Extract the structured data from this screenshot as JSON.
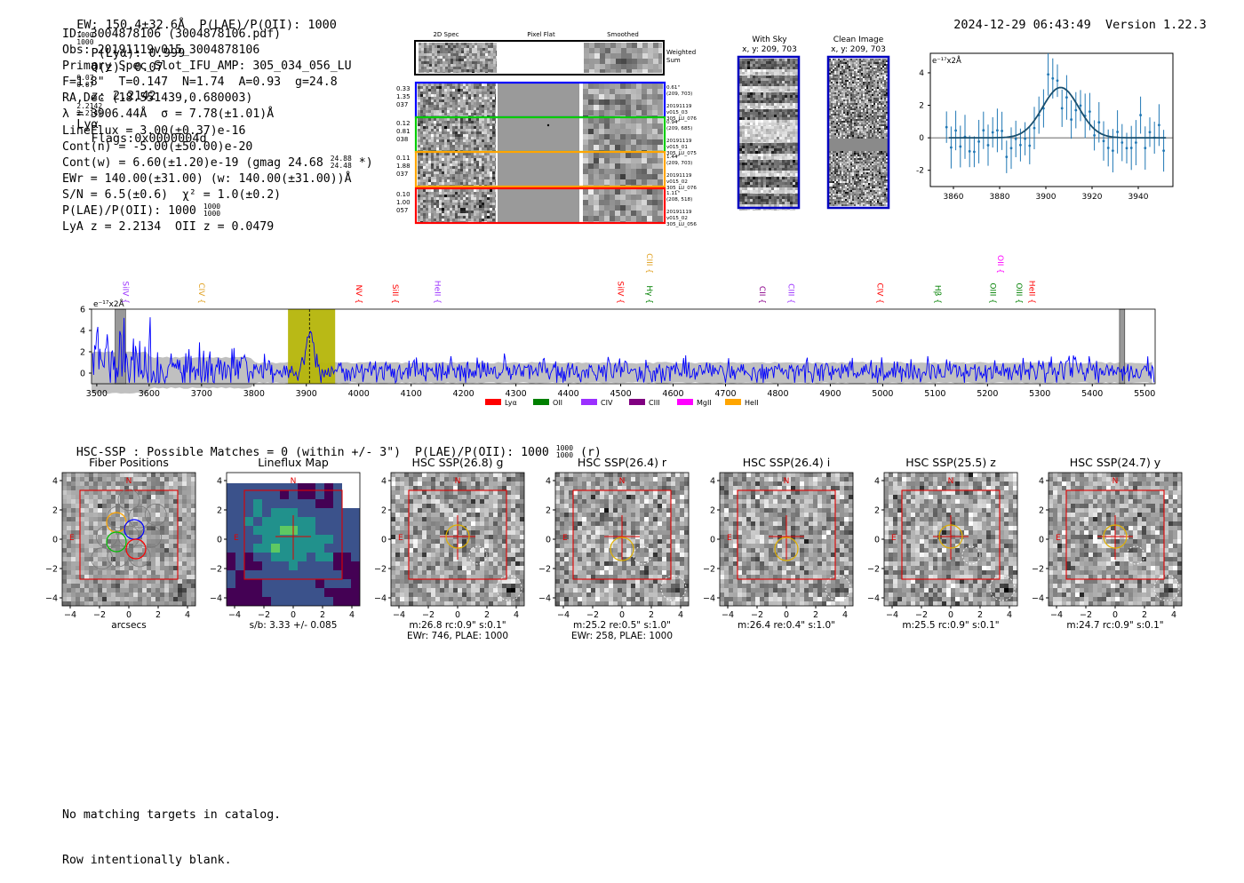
{
  "header": {
    "left": "EW: 150.4±32.6Å  P(LAE)/P(OII): 1000",
    "plae_num": "1000",
    "plae_den": "1000",
    "plya": "P(Lyα): 0.999",
    "qz": "Q(z): 0.07",
    "qz_num": "0.07",
    "qz_den": "0.07",
    "z": "z: 2.2142",
    "z_num": "2.2142",
    "z_den": "2.2142",
    "lya": "Lyα",
    "flags": "Flags:0x0000004d",
    "timestamp": "2024-12-29 06:43:49",
    "version": "Version 1.22.3"
  },
  "info": {
    "l1": "ID: 3004878106 (3004878106.pdf)",
    "l2": "Obs: 20191119v015_3004878106",
    "l3": "Primary Spec_Slot_IFU_AMP: 305_034_056_LU",
    "l4": "F=1.8\"  T=0.147  N=1.74  A=0.93  g=24.8",
    "l5": "RA,Dec (18.551439,0.680003)",
    "l6": "λ = 3906.44Å  σ = 7.78(±1.01)Å",
    "l7": "LineFlux = 3.00(±0.37)e-16",
    "l8": "Cont(n) = -5.00(±50.00)e-20",
    "l9a": "Cont(w) = 6.60(±1.20)e-19 (gmag 24.68",
    "l9_num": "24.88",
    "l9_den": "24.48",
    "l9b": "*)",
    "l10": "EWr = 140.00(±31.00) (w: 140.00(±31.00))Å",
    "l11": "S/N = 6.5(±0.6)  χ² = 1.0(±0.2)",
    "l12": "P(LAE)/P(OII): 1000",
    "l12_num": "1000",
    "l12_den": "1000",
    "l13": "LyA z = 2.2134  OII z = 0.0479"
  },
  "spec2d": {
    "cols": [
      "2D Spec",
      "Pixel Flat",
      "Smoothed"
    ],
    "weighted": [
      "Weighted",
      "Sum"
    ],
    "rows": [
      {
        "left": [
          "0.33",
          "1.35",
          "037"
        ],
        "right": [
          "0.61\"",
          "(209, 703)",
          "",
          "20191119",
          "v015_03",
          "305_LU_076"
        ],
        "color": "#0000ff"
      },
      {
        "left": [
          "0.12",
          "0.81",
          "038"
        ],
        "right": [
          "0.94\"",
          "(209, 685)",
          "",
          "20191119",
          "v015_01",
          "305_LU_075"
        ],
        "color": "#00cc00"
      },
      {
        "left": [
          "0.11",
          "1.88",
          "037"
        ],
        "right": [
          "1.44\"",
          "(209, 703)",
          "",
          "20191119",
          "v015_02",
          "305_LU_076"
        ],
        "color": "#ffa500"
      },
      {
        "left": [
          "0.10",
          "1.00",
          "057"
        ],
        "right": [
          "1.11\"",
          "(208, 518)",
          "",
          "20191119",
          "v015_02",
          "305_LU_056"
        ],
        "color": "#ff0000"
      }
    ]
  },
  "sky": {
    "with_sky": "With Sky",
    "clean": "Clean Image",
    "coords1": "x, y: 209, 703",
    "coords2": "x, y: 209, 703"
  },
  "gauss_plot": {
    "ylabel": "e⁻¹⁷x2Å",
    "xticks": [
      "3860",
      "3880",
      "3900",
      "3920",
      "3940"
    ],
    "yticks": [
      "4",
      "2",
      "0",
      "-2"
    ]
  },
  "full_spectrum": {
    "ylabel": "e⁻¹⁷x2Å",
    "xticks": [
      "3500",
      "3600",
      "3700",
      "3800",
      "3900",
      "4000",
      "4100",
      "4200",
      "4300",
      "4400",
      "4500",
      "4600",
      "4700",
      "4800",
      "4900",
      "5000",
      "5100",
      "5200",
      "5300",
      "5400",
      "5500"
    ],
    "yticks": [
      "6",
      "4",
      "2",
      "0"
    ],
    "lines": [
      {
        "label": "SiIV",
        "color": "#9b30ff",
        "w": 3545
      },
      {
        "label": "CIV",
        "color": "#e0a020",
        "w": 3690
      },
      {
        "label": "NV",
        "color": "#ff0000",
        "w": 3990
      },
      {
        "label": "SiII",
        "color": "#ff0000",
        "w": 4060
      },
      {
        "label": "HeII",
        "color": "#9b30ff",
        "w": 4140
      },
      {
        "label": "SiIV",
        "color": "#ff0000",
        "w": 4490
      },
      {
        "label": "Hγ",
        "color": "#008000",
        "w": 4545
      },
      {
        "label": "CIII",
        "color": "#e0a020",
        "w": 4545,
        "high": true
      },
      {
        "label": "CII",
        "color": "#8b008b",
        "w": 4760
      },
      {
        "label": "CIII",
        "color": "#9b30ff",
        "w": 4815
      },
      {
        "label": "CIV",
        "color": "#ff0000",
        "w": 4985
      },
      {
        "label": "Hβ",
        "color": "#008000",
        "w": 5095
      },
      {
        "label": "OII",
        "color": "#ff00ff",
        "w": 5215,
        "high": true
      },
      {
        "label": "OIII",
        "color": "#008000",
        "w": 5200
      },
      {
        "label": "OIII",
        "color": "#008000",
        "w": 5250
      },
      {
        "label": "HeII",
        "color": "#ff0000",
        "w": 5275
      }
    ],
    "legend": [
      {
        "label": "Lyα",
        "color": "#ff0000"
      },
      {
        "label": "OII",
        "color": "#008000"
      },
      {
        "label": "CIV",
        "color": "#9b30ff"
      },
      {
        "label": "CIII",
        "color": "#800080"
      },
      {
        "label": "MgII",
        "color": "#ff00ff"
      },
      {
        "label": "HeII",
        "color": "#ffa500"
      }
    ]
  },
  "hsc_header": {
    "text": "HSC-SSP : Possible Matches = 0 (within +/- 3\")  P(LAE)/P(OII): 1000",
    "num": "1000",
    "den": "1000",
    "suffix": "(r)"
  },
  "cutouts": [
    {
      "title": "Fiber Positions",
      "cap1": "arcsecs",
      "cap2": ""
    },
    {
      "title": "Lineflux Map",
      "cap1": "s/b: 3.33 +/- 0.085",
      "cap2": ""
    },
    {
      "title": "HSC SSP(26.8) g",
      "cap1": "m:26.8 rc:0.9\"  s:0.1\"",
      "cap2": "EWr: 746, PLAE: 1000"
    },
    {
      "title": "HSC SSP(26.4) r",
      "cap1": "m:25.2  re:0.5\"  s:1.0\"",
      "cap2": "EWr: 258, PLAE: 1000"
    },
    {
      "title": "HSC SSP(26.4) i",
      "cap1": "m:26.4  re:0.4\"  s:1.0\"",
      "cap2": ""
    },
    {
      "title": "HSC SSP(25.5) z",
      "cap1": "m:25.5 rc:0.9\"  s:0.1\"",
      "cap2": ""
    },
    {
      "title": "HSC SSP(24.7) y",
      "cap1": "m:24.7 rc:0.9\"  s:0.1\"",
      "cap2": ""
    }
  ],
  "cutout_ticks": {
    "x": [
      "−4",
      "−2",
      "0",
      "2",
      "4"
    ],
    "y": [
      "4",
      "2",
      "0",
      "−2",
      "−4"
    ],
    "N": "N",
    "E": "E"
  },
  "footer": {
    "l1": "No matching targets in catalog.",
    "l2": "Row intentionally blank."
  }
}
